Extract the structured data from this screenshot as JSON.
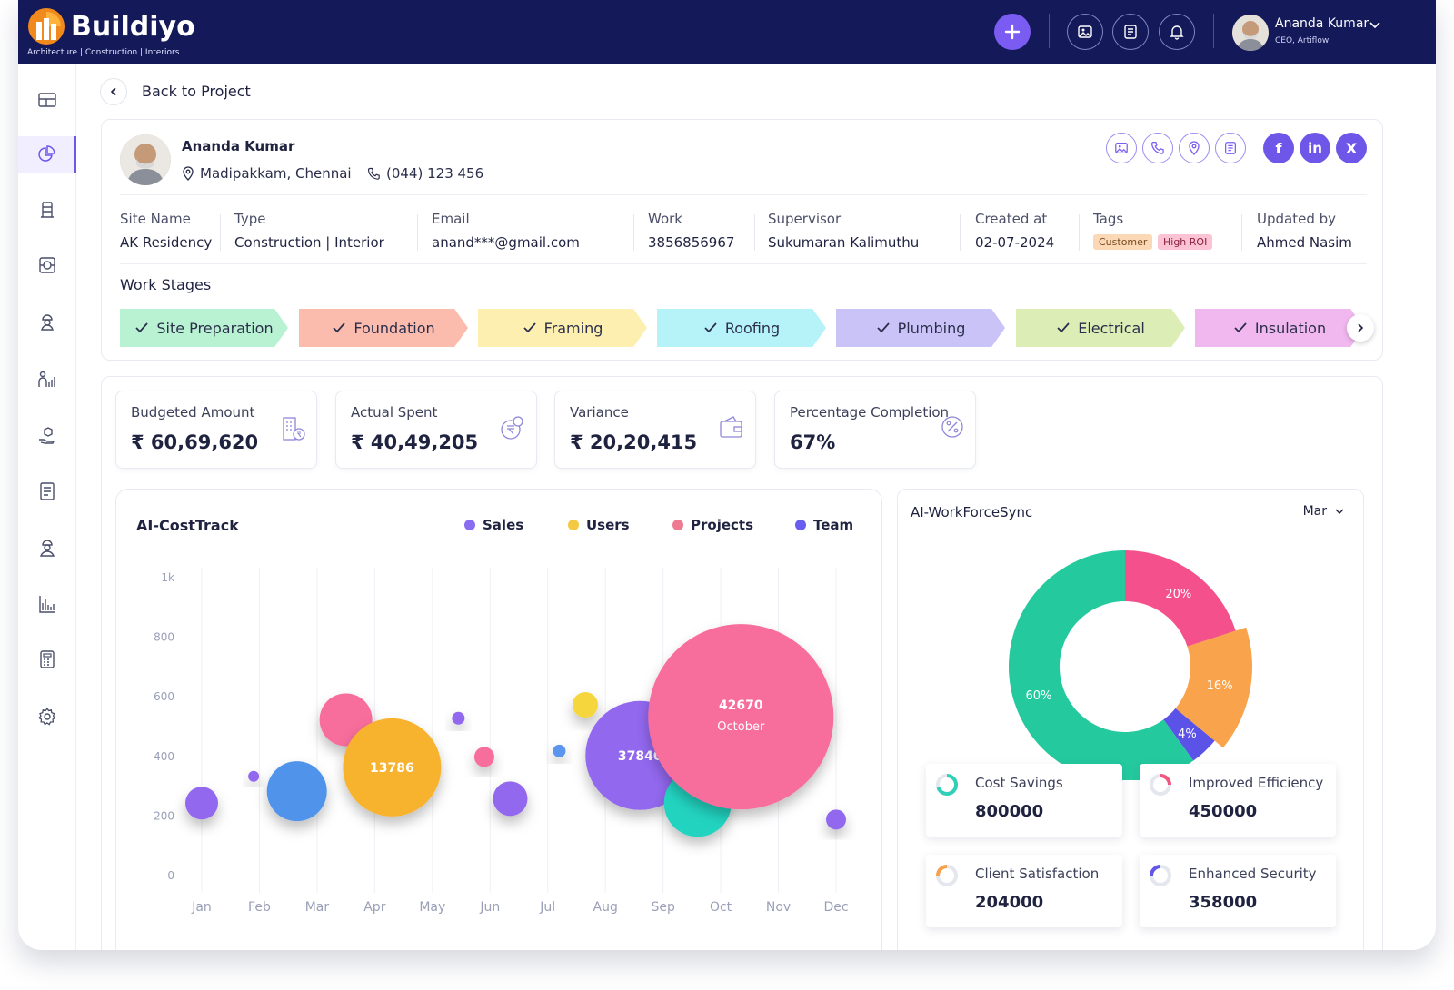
{
  "brand": {
    "name": "Buildiyo",
    "tagline": "Architecture | Construction | Interiors"
  },
  "header": {
    "user_name": "Ananda Kumar",
    "user_role": "CEO, Artiflow"
  },
  "nav": {
    "back_label": "Back to Project"
  },
  "profile": {
    "name": "Ananda Kumar",
    "location": "Madipakkam, Chennai",
    "phone": "(044) 123 456",
    "socials": [
      "f",
      "in",
      "X"
    ]
  },
  "fields": {
    "site_name": {
      "label": "Site Name",
      "value": "AK Residency"
    },
    "type": {
      "label": "Type",
      "value": "Construction | Interior"
    },
    "email": {
      "label": "Email",
      "value": "anand***@gmail.com"
    },
    "work": {
      "label": "Work",
      "value": "3856856967"
    },
    "supervisor": {
      "label": "Supervisor",
      "value": "Sukumaran Kalimuthu"
    },
    "created_at": {
      "label": "Created at",
      "value": "02-07-2024"
    },
    "tags": {
      "label": "Tags",
      "values": [
        "Customer",
        "High ROI"
      ]
    },
    "updated_by": {
      "label": "Updated by",
      "value": "Ahmed Nasim"
    }
  },
  "work_stages": {
    "title": "Work Stages",
    "stages": [
      {
        "label": "Site Preparation",
        "color": "#b9f2d2"
      },
      {
        "label": "Foundation",
        "color": "#fbbcae"
      },
      {
        "label": "Framing",
        "color": "#fcefb0"
      },
      {
        "label": "Roofing",
        "color": "#b5f3f8"
      },
      {
        "label": "Plumbing",
        "color": "#c9c3f8"
      },
      {
        "label": "Electrical",
        "color": "#dceeb5"
      },
      {
        "label": "Insulation",
        "color": "#f0b8ef"
      }
    ]
  },
  "stats": [
    {
      "label": "Budgeted Amount",
      "value": "₹ 60,69,620",
      "icon": "building-rupee-icon"
    },
    {
      "label": "Actual Spent",
      "value": "₹ 40,49,205",
      "icon": "coins-rupee-icon"
    },
    {
      "label": "Variance",
      "value": "₹ 20,20,415",
      "icon": "wallet-icon"
    },
    {
      "label": "Percentage Completion",
      "value": "67%",
      "icon": "percent-icon"
    }
  ],
  "chart_data": [
    {
      "type": "scatter",
      "title": "AI-CostTrack",
      "legend": [
        {
          "name": "Sales",
          "color": "#8a6cf0"
        },
        {
          "name": "Users",
          "color": "#f4c842"
        },
        {
          "name": "Projects",
          "color": "#ee7a92"
        },
        {
          "name": "Team",
          "color": "#6a5cf0"
        }
      ],
      "x_categories": [
        "Jan",
        "Feb",
        "Mar",
        "Apr",
        "May",
        "Jun",
        "Jul",
        "Aug",
        "Sep",
        "Oct",
        "Nov",
        "Dec"
      ],
      "y_ticks": [
        "1k",
        "800",
        "600",
        "400",
        "200",
        "0"
      ],
      "ylim": [
        0,
        1000
      ],
      "bubbles": [
        {
          "x": 0,
          "y": 240,
          "r": 18,
          "color": "#9268ef"
        },
        {
          "x": 0.9,
          "y": 330,
          "r": 6,
          "color": "#9268ef"
        },
        {
          "x": 1.65,
          "y": 280,
          "r": 33,
          "color": "#4f93ea"
        },
        {
          "x": 2.5,
          "y": 520,
          "r": 29,
          "color": "#f76d9b"
        },
        {
          "x": 3.3,
          "y": 360,
          "r": 54,
          "color": "#f7b22e",
          "label": "13786"
        },
        {
          "x": 4.45,
          "y": 525,
          "r": 7,
          "color": "#9268ef"
        },
        {
          "x": 4.9,
          "y": 395,
          "r": 11,
          "color": "#f76d9b"
        },
        {
          "x": 5.35,
          "y": 255,
          "r": 19,
          "color": "#9268ef"
        },
        {
          "x": 6.2,
          "y": 415,
          "r": 7,
          "color": "#5b95ee"
        },
        {
          "x": 6.65,
          "y": 570,
          "r": 14,
          "color": "#f5d63c"
        },
        {
          "x": 7.6,
          "y": 400,
          "r": 60,
          "color": "#9268ef",
          "label": "37840"
        },
        {
          "x": 8.6,
          "y": 240,
          "r": 37,
          "color": "#22d3c0"
        },
        {
          "x": 9.35,
          "y": 530,
          "r": 102,
          "color": "#f76d9b",
          "label": "42670",
          "sublabel": "October"
        },
        {
          "x": 11,
          "y": 185,
          "r": 11,
          "color": "#9268ef"
        }
      ]
    },
    {
      "type": "pie",
      "title": "AI-WorkForceSync",
      "slices": [
        {
          "label": "20%",
          "value": 20,
          "color": "#f4508b"
        },
        {
          "label": "16%",
          "value": 16,
          "color": "#f9a44c"
        },
        {
          "label": "4%",
          "value": 4,
          "color": "#5b52e8"
        },
        {
          "label": "60%",
          "value": 60,
          "color": "#24c99e"
        }
      ]
    }
  ],
  "donut_card": {
    "month": "Mar"
  },
  "metrics": [
    {
      "label": "Cost Savings",
      "value": "800000",
      "color": "#2fd0b8"
    },
    {
      "label": "Improved Efficiency",
      "value": "450000",
      "color": "#f0567e"
    },
    {
      "label": "Client Satisfaction",
      "value": "204000",
      "color": "#f7a24a"
    },
    {
      "label": "Enhanced Security",
      "value": "358000",
      "color": "#6357ea"
    }
  ],
  "colors": {
    "header_bg": "#14195a",
    "accent": "#6e56e8"
  }
}
